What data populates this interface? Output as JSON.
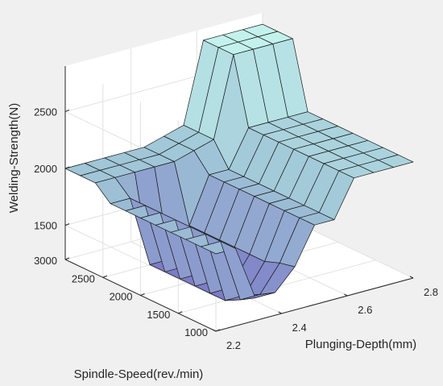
{
  "chart_data": {
    "type": "surface",
    "xlabel": "Plunging-Depth(mm)",
    "ylabel": "Spindle-Speed(rev./min)",
    "zlabel": "Welding-Strength(N)",
    "xlim": [
      2.2,
      2.8
    ],
    "ylim": [
      1000,
      3000
    ],
    "zlim": [
      1200,
      2900
    ],
    "x_ticks": [
      "2.2",
      "2.4",
      "2.6",
      "2.8"
    ],
    "y_ticks": [
      "1000",
      "1500",
      "2000",
      "2500",
      "3000"
    ],
    "z_ticks": [
      "1500",
      "2000",
      "2500"
    ],
    "x": [
      2.2,
      2.26,
      2.32,
      2.38,
      2.44,
      2.5,
      2.56,
      2.62,
      2.68,
      2.74,
      2.8
    ],
    "y": [
      1000,
      1200,
      1400,
      1600,
      1800,
      2000,
      2200,
      2400,
      2600,
      2800,
      3000
    ],
    "z": [
      [
        1880,
        1880,
        1400,
        1400,
        1580,
        1900,
        1900,
        2220,
        2220,
        2220,
        2220
      ],
      [
        1880,
        1880,
        1320,
        1320,
        1550,
        1900,
        1900,
        2220,
        2220,
        2220,
        2220
      ],
      [
        1880,
        1880,
        1250,
        1250,
        1500,
        1900,
        1900,
        2220,
        2220,
        2220,
        2220
      ],
      [
        1880,
        1880,
        1250,
        1250,
        1500,
        1900,
        1900,
        2220,
        2220,
        2220,
        2220
      ],
      [
        1880,
        1880,
        1250,
        1250,
        1500,
        1900,
        1900,
        2220,
        2220,
        2220,
        2220
      ],
      [
        1880,
        1880,
        1250,
        1250,
        1500,
        1900,
        1900,
        2220,
        2220,
        2220,
        2220
      ],
      [
        1880,
        1880,
        1250,
        1250,
        1500,
        1900,
        1900,
        2220,
        2220,
        2220,
        2220
      ],
      [
        1880,
        1880,
        1250,
        1250,
        1500,
        1900,
        1900,
        2220,
        2220,
        2220,
        2220
      ],
      [
        2000,
        2000,
        2000,
        2000,
        2000,
        2050,
        2100,
        2800,
        2800,
        2800,
        2800
      ],
      [
        2000,
        2000,
        2000,
        2000,
        2000,
        2050,
        2100,
        2800,
        2800,
        2800,
        2800
      ],
      [
        2000,
        2000,
        2000,
        2000,
        2000,
        2050,
        2100,
        2800,
        2800,
        2800,
        2800
      ]
    ],
    "grid": true,
    "colormap": [
      "#7d7cc6",
      "#a1c8d8",
      "#c3f2ec"
    ],
    "axes_color": "#262626",
    "background": "#ffffff"
  }
}
